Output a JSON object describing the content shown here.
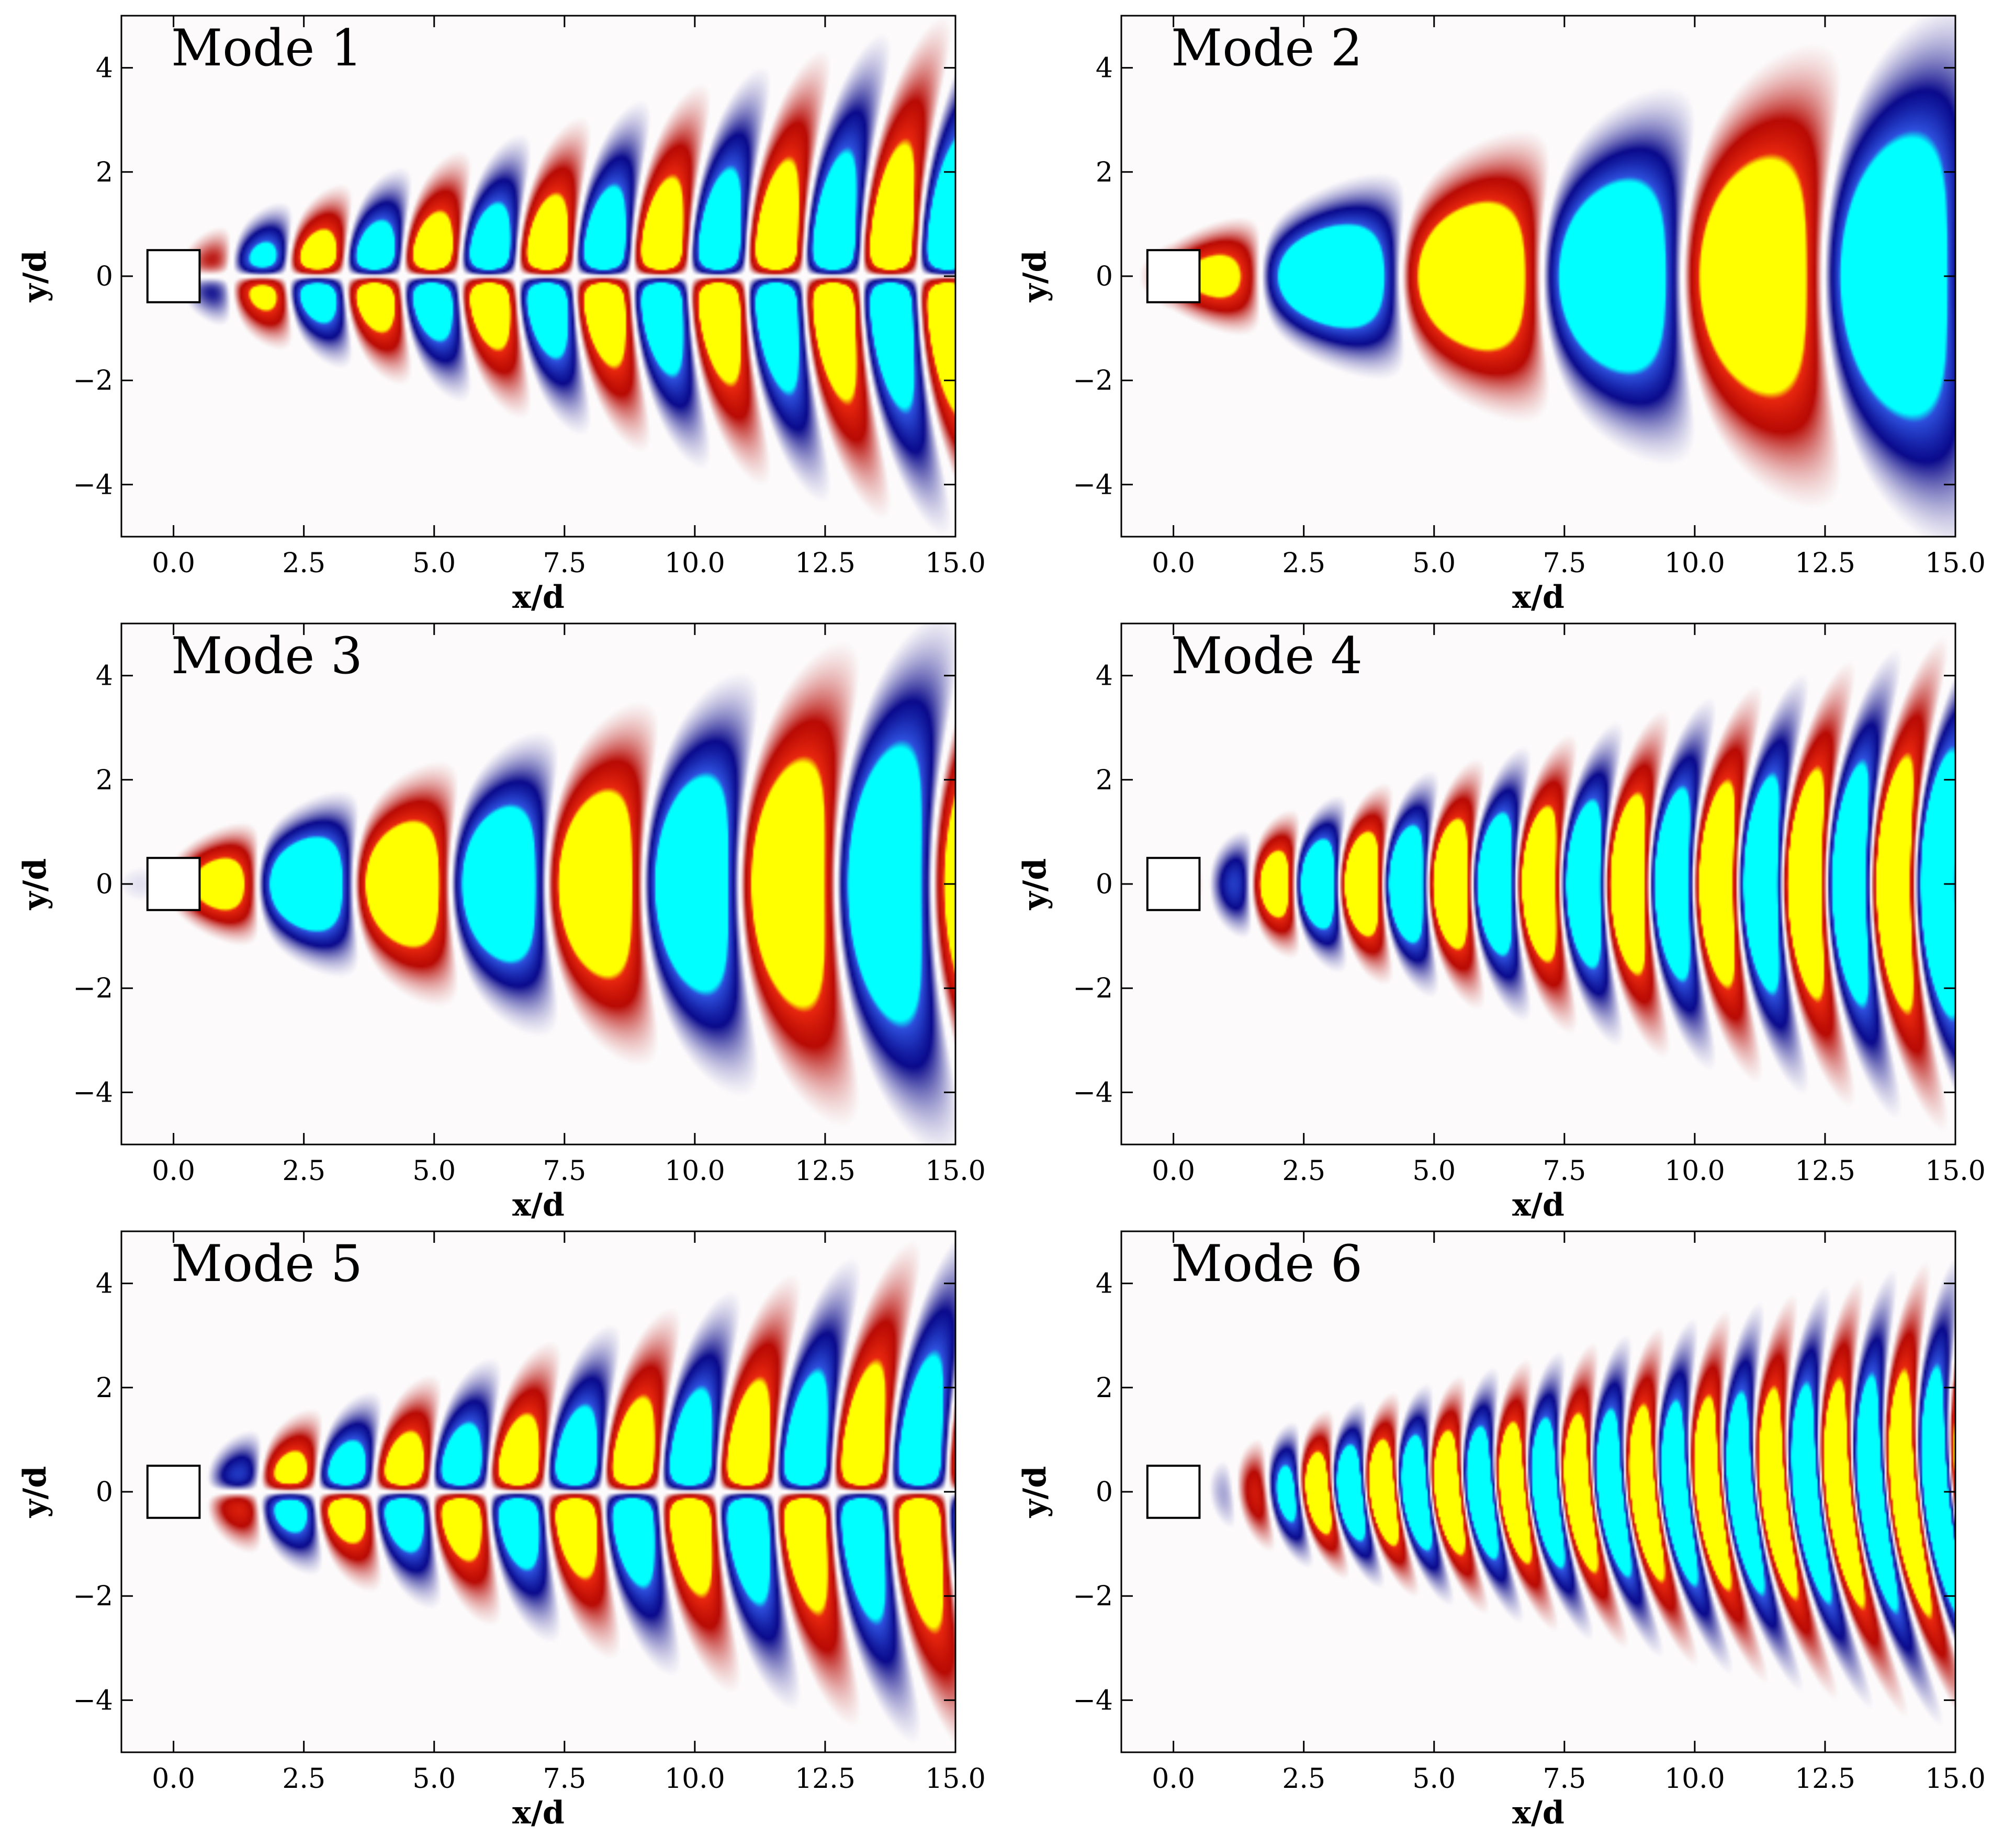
{
  "figure": {
    "colors": {
      "strong_positive": "#ffff00",
      "positive": "#e8270f",
      "weak_positive": "#b80a04",
      "strong_negative": "#00ffff",
      "negative": "#2d4fdc",
      "weak_negative": "#0a0a8c",
      "background": "#fcfafb"
    }
  },
  "chart_data": [
    {
      "type": "heatmap",
      "title": "Mode 1",
      "xlabel": "x/d",
      "ylabel": "y/d",
      "xlim": [
        -1,
        15
      ],
      "ylim": [
        -5,
        5
      ],
      "xticks": [
        0.0,
        2.5,
        5.0,
        7.5,
        10.0,
        12.5,
        15.0
      ],
      "xtick_labels": [
        "0.0",
        "2.5",
        "5.0",
        "7.5",
        "10.0",
        "12.5",
        "15.0"
      ],
      "yticks": [
        4,
        2,
        0,
        -2,
        -4
      ],
      "ytick_labels": [
        "4",
        "2",
        "0",
        "−2",
        "−4"
      ],
      "cylinder": {
        "x": [
          -0.5,
          0.5
        ],
        "y": [
          -0.5,
          0.5
        ]
      },
      "pattern": {
        "wavelength": 2.2,
        "symmetry": "antisymmetric",
        "spread": 0.17,
        "onset": 1.0,
        "phase": 0.0
      }
    },
    {
      "type": "heatmap",
      "title": "Mode 2",
      "xlabel": "x/d",
      "ylabel": "y/d",
      "xlim": [
        -1,
        15
      ],
      "ylim": [
        -5,
        5
      ],
      "xticks": [
        0.0,
        2.5,
        5.0,
        7.5,
        10.0,
        12.5,
        15.0
      ],
      "xtick_labels": [
        "0.0",
        "2.5",
        "5.0",
        "7.5",
        "10.0",
        "12.5",
        "15.0"
      ],
      "yticks": [
        4,
        2,
        0,
        -2,
        -4
      ],
      "ytick_labels": [
        "4",
        "2",
        "0",
        "−2",
        "−4"
      ],
      "cylinder": {
        "x": [
          -0.5,
          0.5
        ],
        "y": [
          -0.5,
          0.5
        ]
      },
      "pattern": {
        "wavelength": 5.4,
        "symmetry": "symmetric",
        "spread": 0.18,
        "onset": 0.5,
        "phase": 1.2
      }
    },
    {
      "type": "heatmap",
      "title": "Mode 3",
      "xlabel": "x/d",
      "ylabel": "y/d",
      "xlim": [
        -1,
        15
      ],
      "ylim": [
        -5,
        5
      ],
      "xticks": [
        0.0,
        2.5,
        5.0,
        7.5,
        10.0,
        12.5,
        15.0
      ],
      "xtick_labels": [
        "0.0",
        "2.5",
        "5.0",
        "7.5",
        "10.0",
        "12.5",
        "15.0"
      ],
      "yticks": [
        4,
        2,
        0,
        -2,
        -4
      ],
      "ytick_labels": [
        "4",
        "2",
        "0",
        "−2",
        "−4"
      ],
      "cylinder": {
        "x": [
          -0.5,
          0.5
        ],
        "y": [
          -0.5,
          0.5
        ]
      },
      "pattern": {
        "wavelength": 3.7,
        "symmetry": "symmetric",
        "spread": 0.18,
        "onset": 0.5,
        "phase": 0.4
      }
    },
    {
      "type": "heatmap",
      "title": "Mode 4",
      "xlabel": "x/d",
      "ylabel": "y/d",
      "xlim": [
        -1,
        15
      ],
      "ylim": [
        -5,
        5
      ],
      "xticks": [
        0.0,
        2.5,
        5.0,
        7.5,
        10.0,
        12.5,
        15.0
      ],
      "xtick_labels": [
        "0.0",
        "2.5",
        "5.0",
        "7.5",
        "10.0",
        "12.5",
        "15.0"
      ],
      "yticks": [
        4,
        2,
        0,
        -2,
        -4
      ],
      "ytick_labels": [
        "4",
        "2",
        "0",
        "−2",
        "−4"
      ],
      "cylinder": {
        "x": [
          -0.5,
          0.5
        ],
        "y": [
          -0.5,
          0.5
        ]
      },
      "pattern": {
        "wavelength": 1.7,
        "symmetry": "symmetric",
        "spread": 0.16,
        "onset": 1.5,
        "phase": 0.8
      }
    },
    {
      "type": "heatmap",
      "title": "Mode 5",
      "xlabel": "x/d",
      "ylabel": "y/d",
      "xlim": [
        -1,
        15
      ],
      "ylim": [
        -5,
        5
      ],
      "xticks": [
        0.0,
        2.5,
        5.0,
        7.5,
        10.0,
        12.5,
        15.0
      ],
      "xtick_labels": [
        "0.0",
        "2.5",
        "5.0",
        "7.5",
        "10.0",
        "12.5",
        "15.0"
      ],
      "yticks": [
        4,
        2,
        0,
        -2,
        -4
      ],
      "ytick_labels": [
        "4",
        "2",
        "0",
        "−2",
        "−4"
      ],
      "cylinder": {
        "x": [
          -0.5,
          0.5
        ],
        "y": [
          -0.5,
          0.5
        ]
      },
      "pattern": {
        "wavelength": 2.2,
        "symmetry": "antisymmetric",
        "spread": 0.17,
        "onset": 1.2,
        "phase": 1.57
      }
    },
    {
      "type": "heatmap",
      "title": "Mode 6",
      "xlabel": "x/d",
      "ylabel": "y/d",
      "xlim": [
        -1,
        15
      ],
      "ylim": [
        -5,
        5
      ],
      "xticks": [
        0.0,
        2.5,
        5.0,
        7.5,
        10.0,
        12.5,
        15.0
      ],
      "xtick_labels": [
        "0.0",
        "2.5",
        "5.0",
        "7.5",
        "10.0",
        "12.5",
        "15.0"
      ],
      "yticks": [
        4,
        2,
        0,
        -2,
        -4
      ],
      "ytick_labels": [
        "4",
        "2",
        "0",
        "−2",
        "−4"
      ],
      "cylinder": {
        "x": [
          -0.5,
          0.5
        ],
        "y": [
          -0.5,
          0.5
        ]
      },
      "pattern": {
        "wavelength": 1.25,
        "symmetry": "mixed",
        "spread": 0.15,
        "onset": 2.0,
        "phase": 0.3
      }
    }
  ]
}
